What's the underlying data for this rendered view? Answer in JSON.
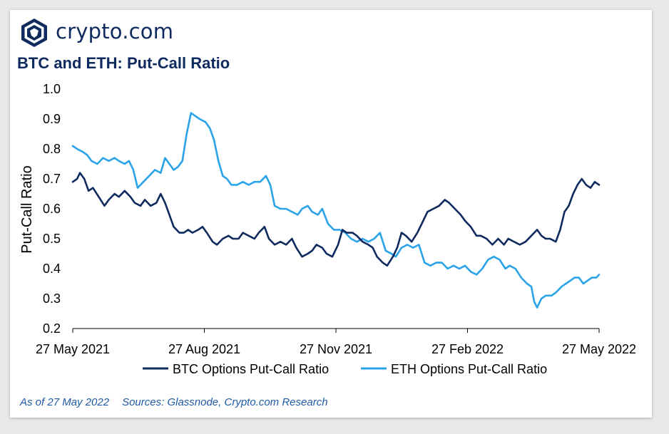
{
  "brand": {
    "name": "crypto.com",
    "colors": {
      "navy": "#0e2a5e",
      "btc": "#0e2a5e",
      "eth": "#2aa3e8"
    }
  },
  "footer": {
    "as_of": "As of 27 May 2022",
    "sources": "Sources: Glassnode, Crypto.com Research"
  },
  "chart_data": {
    "type": "line",
    "title": "BTC and ETH: Put-Call Ratio",
    "xlabel": "",
    "ylabel": "Put-Call Ratio",
    "ylim": [
      0.2,
      1.0
    ],
    "yticks": [
      "1.0",
      "0.9",
      "0.8",
      "0.7",
      "0.6",
      "0.5",
      "0.4",
      "0.3",
      "0.2"
    ],
    "xlim": [
      "2021-05-27",
      "2022-05-27"
    ],
    "xticks": [
      "27 May 2021",
      "27 Aug 2021",
      "27 Nov 2021",
      "27 Feb 2022",
      "27 May 2022"
    ],
    "grid": false,
    "legend": "bottom",
    "series": [
      {
        "name": "BTC Options Put-Call Ratio",
        "color": "#0e2a5e",
        "points": [
          [
            "2021-05-27",
            0.69
          ],
          [
            "2021-05-30",
            0.7
          ],
          [
            "2021-06-01",
            0.72
          ],
          [
            "2021-06-04",
            0.7
          ],
          [
            "2021-06-07",
            0.66
          ],
          [
            "2021-06-10",
            0.67
          ],
          [
            "2021-06-14",
            0.64
          ],
          [
            "2021-06-18",
            0.61
          ],
          [
            "2021-06-21",
            0.63
          ],
          [
            "2021-06-25",
            0.65
          ],
          [
            "2021-06-28",
            0.64
          ],
          [
            "2021-07-02",
            0.66
          ],
          [
            "2021-07-06",
            0.64
          ],
          [
            "2021-07-09",
            0.62
          ],
          [
            "2021-07-13",
            0.61
          ],
          [
            "2021-07-16",
            0.63
          ],
          [
            "2021-07-20",
            0.61
          ],
          [
            "2021-07-24",
            0.62
          ],
          [
            "2021-07-27",
            0.65
          ],
          [
            "2021-07-30",
            0.62
          ],
          [
            "2021-08-02",
            0.58
          ],
          [
            "2021-08-05",
            0.54
          ],
          [
            "2021-08-09",
            0.52
          ],
          [
            "2021-08-12",
            0.52
          ],
          [
            "2021-08-15",
            0.53
          ],
          [
            "2021-08-18",
            0.52
          ],
          [
            "2021-08-22",
            0.53
          ],
          [
            "2021-08-25",
            0.54
          ],
          [
            "2021-08-28",
            0.52
          ],
          [
            "2021-09-01",
            0.49
          ],
          [
            "2021-09-04",
            0.48
          ],
          [
            "2021-09-08",
            0.5
          ],
          [
            "2021-09-12",
            0.51
          ],
          [
            "2021-09-15",
            0.5
          ],
          [
            "2021-09-19",
            0.5
          ],
          [
            "2021-09-22",
            0.52
          ],
          [
            "2021-09-26",
            0.51
          ],
          [
            "2021-09-30",
            0.5
          ],
          [
            "2021-10-03",
            0.52
          ],
          [
            "2021-10-07",
            0.54
          ],
          [
            "2021-10-10",
            0.5
          ],
          [
            "2021-10-14",
            0.48
          ],
          [
            "2021-10-18",
            0.49
          ],
          [
            "2021-10-22",
            0.48
          ],
          [
            "2021-10-26",
            0.5
          ],
          [
            "2021-10-29",
            0.47
          ],
          [
            "2021-11-02",
            0.44
          ],
          [
            "2021-11-06",
            0.45
          ],
          [
            "2021-11-09",
            0.46
          ],
          [
            "2021-11-12",
            0.48
          ],
          [
            "2021-11-16",
            0.47
          ],
          [
            "2021-11-19",
            0.45
          ],
          [
            "2021-11-23",
            0.44
          ],
          [
            "2021-11-27",
            0.48
          ],
          [
            "2021-11-30",
            0.53
          ],
          [
            "2021-12-03",
            0.52
          ],
          [
            "2021-12-07",
            0.52
          ],
          [
            "2021-12-10",
            0.51
          ],
          [
            "2021-12-14",
            0.49
          ],
          [
            "2021-12-18",
            0.48
          ],
          [
            "2021-12-21",
            0.47
          ],
          [
            "2021-12-24",
            0.44
          ],
          [
            "2021-12-28",
            0.42
          ],
          [
            "2021-12-31",
            0.41
          ],
          [
            "2022-01-04",
            0.44
          ],
          [
            "2022-01-07",
            0.47
          ],
          [
            "2022-01-10",
            0.52
          ],
          [
            "2022-01-13",
            0.51
          ],
          [
            "2022-01-17",
            0.49
          ],
          [
            "2022-01-21",
            0.52
          ],
          [
            "2022-01-24",
            0.55
          ],
          [
            "2022-01-28",
            0.59
          ],
          [
            "2022-02-01",
            0.6
          ],
          [
            "2022-02-05",
            0.61
          ],
          [
            "2022-02-09",
            0.63
          ],
          [
            "2022-02-12",
            0.62
          ],
          [
            "2022-02-16",
            0.6
          ],
          [
            "2022-02-20",
            0.58
          ],
          [
            "2022-02-23",
            0.56
          ],
          [
            "2022-02-27",
            0.54
          ],
          [
            "2022-03-03",
            0.51
          ],
          [
            "2022-03-06",
            0.51
          ],
          [
            "2022-03-10",
            0.5
          ],
          [
            "2022-03-14",
            0.48
          ],
          [
            "2022-03-18",
            0.5
          ],
          [
            "2022-03-22",
            0.48
          ],
          [
            "2022-03-25",
            0.5
          ],
          [
            "2022-03-29",
            0.49
          ],
          [
            "2022-04-02",
            0.48
          ],
          [
            "2022-04-06",
            0.49
          ],
          [
            "2022-04-10",
            0.51
          ],
          [
            "2022-04-14",
            0.53
          ],
          [
            "2022-04-17",
            0.51
          ],
          [
            "2022-04-20",
            0.5
          ],
          [
            "2022-04-23",
            0.5
          ],
          [
            "2022-04-27",
            0.49
          ],
          [
            "2022-04-30",
            0.53
          ],
          [
            "2022-05-03",
            0.59
          ],
          [
            "2022-05-06",
            0.61
          ],
          [
            "2022-05-09",
            0.65
          ],
          [
            "2022-05-12",
            0.68
          ],
          [
            "2022-05-15",
            0.7
          ],
          [
            "2022-05-18",
            0.68
          ],
          [
            "2022-05-21",
            0.67
          ],
          [
            "2022-05-24",
            0.69
          ],
          [
            "2022-05-27",
            0.68
          ]
        ]
      },
      {
        "name": "ETH Options Put-Call Ratio",
        "color": "#2aa3e8",
        "points": [
          [
            "2021-05-27",
            0.81
          ],
          [
            "2021-05-30",
            0.8
          ],
          [
            "2021-06-03",
            0.79
          ],
          [
            "2021-06-06",
            0.78
          ],
          [
            "2021-06-09",
            0.76
          ],
          [
            "2021-06-13",
            0.75
          ],
          [
            "2021-06-17",
            0.77
          ],
          [
            "2021-06-21",
            0.76
          ],
          [
            "2021-06-25",
            0.77
          ],
          [
            "2021-06-28",
            0.76
          ],
          [
            "2021-07-02",
            0.75
          ],
          [
            "2021-07-05",
            0.76
          ],
          [
            "2021-07-08",
            0.73
          ],
          [
            "2021-07-11",
            0.67
          ],
          [
            "2021-07-15",
            0.69
          ],
          [
            "2021-07-19",
            0.71
          ],
          [
            "2021-07-23",
            0.73
          ],
          [
            "2021-07-27",
            0.72
          ],
          [
            "2021-07-30",
            0.77
          ],
          [
            "2021-08-02",
            0.75
          ],
          [
            "2021-08-05",
            0.73
          ],
          [
            "2021-08-08",
            0.74
          ],
          [
            "2021-08-11",
            0.76
          ],
          [
            "2021-08-14",
            0.85
          ],
          [
            "2021-08-17",
            0.92
          ],
          [
            "2021-08-20",
            0.91
          ],
          [
            "2021-08-23",
            0.9
          ],
          [
            "2021-08-27",
            0.89
          ],
          [
            "2021-08-30",
            0.87
          ],
          [
            "2021-09-02",
            0.83
          ],
          [
            "2021-09-05",
            0.76
          ],
          [
            "2021-09-08",
            0.71
          ],
          [
            "2021-09-11",
            0.7
          ],
          [
            "2021-09-14",
            0.68
          ],
          [
            "2021-09-18",
            0.68
          ],
          [
            "2021-09-22",
            0.69
          ],
          [
            "2021-09-26",
            0.68
          ],
          [
            "2021-09-30",
            0.69
          ],
          [
            "2021-10-04",
            0.69
          ],
          [
            "2021-10-08",
            0.71
          ],
          [
            "2021-10-11",
            0.68
          ],
          [
            "2021-10-14",
            0.61
          ],
          [
            "2021-10-18",
            0.6
          ],
          [
            "2021-10-22",
            0.6
          ],
          [
            "2021-10-26",
            0.59
          ],
          [
            "2021-10-30",
            0.58
          ],
          [
            "2021-11-02",
            0.6
          ],
          [
            "2021-11-06",
            0.61
          ],
          [
            "2021-11-09",
            0.59
          ],
          [
            "2021-11-13",
            0.58
          ],
          [
            "2021-11-16",
            0.6
          ],
          [
            "2021-11-20",
            0.55
          ],
          [
            "2021-11-24",
            0.53
          ],
          [
            "2021-11-28",
            0.53
          ],
          [
            "2021-12-02",
            0.52
          ],
          [
            "2021-12-06",
            0.5
          ],
          [
            "2021-12-10",
            0.49
          ],
          [
            "2021-12-14",
            0.5
          ],
          [
            "2021-12-18",
            0.49
          ],
          [
            "2021-12-22",
            0.5
          ],
          [
            "2021-12-26",
            0.52
          ],
          [
            "2021-12-30",
            0.46
          ],
          [
            "2022-01-03",
            0.45
          ],
          [
            "2022-01-06",
            0.44
          ],
          [
            "2022-01-10",
            0.47
          ],
          [
            "2022-01-14",
            0.48
          ],
          [
            "2022-01-18",
            0.47
          ],
          [
            "2022-01-22",
            0.48
          ],
          [
            "2022-01-26",
            0.42
          ],
          [
            "2022-01-30",
            0.41
          ],
          [
            "2022-02-03",
            0.42
          ],
          [
            "2022-02-07",
            0.42
          ],
          [
            "2022-02-11",
            0.4
          ],
          [
            "2022-02-15",
            0.41
          ],
          [
            "2022-02-19",
            0.4
          ],
          [
            "2022-02-23",
            0.41
          ],
          [
            "2022-02-27",
            0.39
          ],
          [
            "2022-03-03",
            0.38
          ],
          [
            "2022-03-07",
            0.4
          ],
          [
            "2022-03-11",
            0.43
          ],
          [
            "2022-03-15",
            0.44
          ],
          [
            "2022-03-19",
            0.43
          ],
          [
            "2022-03-23",
            0.4
          ],
          [
            "2022-03-26",
            0.41
          ],
          [
            "2022-03-30",
            0.4
          ],
          [
            "2022-04-03",
            0.37
          ],
          [
            "2022-04-07",
            0.35
          ],
          [
            "2022-04-10",
            0.34
          ],
          [
            "2022-04-12",
            0.29
          ],
          [
            "2022-04-14",
            0.27
          ],
          [
            "2022-04-17",
            0.3
          ],
          [
            "2022-04-20",
            0.31
          ],
          [
            "2022-04-24",
            0.31
          ],
          [
            "2022-04-27",
            0.32
          ],
          [
            "2022-05-01",
            0.34
          ],
          [
            "2022-05-04",
            0.35
          ],
          [
            "2022-05-07",
            0.36
          ],
          [
            "2022-05-10",
            0.37
          ],
          [
            "2022-05-13",
            0.37
          ],
          [
            "2022-05-16",
            0.35
          ],
          [
            "2022-05-19",
            0.36
          ],
          [
            "2022-05-22",
            0.37
          ],
          [
            "2022-05-25",
            0.37
          ],
          [
            "2022-05-27",
            0.38
          ]
        ]
      }
    ]
  }
}
